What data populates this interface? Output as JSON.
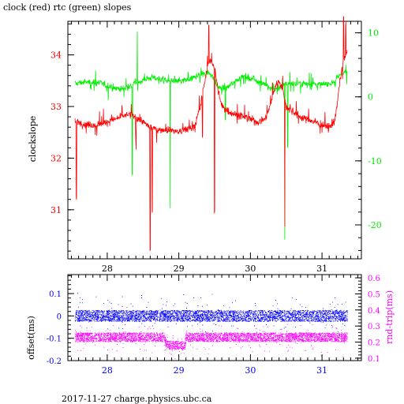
{
  "title": "clock (red) rtc (green) slopes",
  "footer": "2017-11-27 charge.physics.ubc.ca",
  "colors": {
    "red": "#ff0000",
    "green": "#00ee00",
    "blue": "#0000ff",
    "magenta": "#ff00ff",
    "axis": "#000000"
  },
  "chart_data": [
    {
      "type": "line",
      "title": "clock (red) rtc (green) slopes",
      "xlabel": "",
      "ylabel": "clockslope",
      "y2label": "",
      "xlim": [
        27.45,
        31.55
      ],
      "ylim": [
        30.05,
        34.65
      ],
      "y2lim": [
        -25.3,
        11.8
      ],
      "xticks": [
        "28",
        "29",
        "30",
        "31"
      ],
      "yticks": [
        "31",
        "32",
        "33",
        "34"
      ],
      "y2ticks": [
        "10",
        "0",
        "-10",
        "-20"
      ],
      "series": [
        {
          "name": "clock (red)",
          "axis": "left",
          "x": [
            27.55,
            27.6,
            27.7,
            27.8,
            27.9,
            28.0,
            28.1,
            28.2,
            28.3,
            28.4,
            28.5,
            28.6,
            28.7,
            28.8,
            28.9,
            29.0,
            29.1,
            29.2,
            29.25,
            29.3,
            29.35,
            29.4,
            29.45,
            29.5,
            29.55,
            29.6,
            29.7,
            29.8,
            29.9,
            30.0,
            30.1,
            30.2,
            30.25,
            30.3,
            30.35,
            30.4,
            30.45,
            30.5,
            30.6,
            30.7,
            30.8,
            30.9,
            31.0,
            31.1,
            31.15,
            31.2,
            31.25,
            31.3,
            31.35
          ],
          "values": [
            32.7,
            32.7,
            32.65,
            32.65,
            32.65,
            32.7,
            32.75,
            32.8,
            32.85,
            32.8,
            32.7,
            32.6,
            32.55,
            32.55,
            32.55,
            32.5,
            32.55,
            32.6,
            32.75,
            33.0,
            33.4,
            33.8,
            33.9,
            33.75,
            33.3,
            33.0,
            32.9,
            32.85,
            32.8,
            32.75,
            32.7,
            32.75,
            32.9,
            33.15,
            33.4,
            33.5,
            33.35,
            33.0,
            32.9,
            32.8,
            32.75,
            32.7,
            32.65,
            32.6,
            32.65,
            32.9,
            33.5,
            33.9,
            34.05
          ]
        },
        {
          "name": "rtc (green)",
          "axis": "right",
          "x": [
            27.55,
            27.6,
            27.7,
            27.8,
            27.9,
            28.0,
            28.1,
            28.2,
            28.3,
            28.4,
            28.5,
            28.6,
            28.7,
            28.8,
            28.9,
            29.0,
            29.1,
            29.2,
            29.25,
            29.3,
            29.35,
            29.4,
            29.45,
            29.5,
            29.55,
            29.6,
            29.7,
            29.8,
            29.9,
            30.0,
            30.1,
            30.2,
            30.25,
            30.3,
            30.35,
            30.4,
            30.45,
            30.5,
            30.6,
            30.7,
            30.8,
            30.9,
            31.0,
            31.1,
            31.15,
            31.2,
            31.25,
            31.3,
            31.35
          ],
          "values": [
            2.0,
            2.2,
            2.3,
            2.3,
            2.2,
            1.7,
            1.4,
            1.2,
            1.6,
            2.2,
            2.6,
            3.0,
            2.9,
            2.6,
            2.4,
            2.4,
            2.6,
            2.9,
            3.3,
            3.5,
            3.6,
            3.8,
            3.6,
            2.5,
            1.5,
            1.3,
            1.6,
            2.6,
            3.2,
            3.0,
            2.5,
            2.1,
            1.4,
            1.1,
            1.2,
            1.4,
            1.7,
            2.1,
            2.0,
            2.1,
            2.1,
            2.0,
            1.9,
            2.1,
            2.3,
            2.7,
            3.4,
            3.9,
            3.7
          ]
        }
      ]
    },
    {
      "type": "scatter",
      "xlabel": "",
      "ylabel": "offset(ms)",
      "y2label": "rnd-trip(ms)",
      "xlim": [
        27.45,
        31.55
      ],
      "ylim": [
        -0.2,
        0.185
      ],
      "y2lim": [
        0.085,
        0.62
      ],
      "xticks": [
        "28",
        "29",
        "30",
        "31"
      ],
      "yticks": [
        "0.1",
        "0",
        "-0.1",
        "-0.2"
      ],
      "y2ticks": [
        "0.6",
        "0.5",
        "0.4",
        "0.3",
        "0.2",
        "0.1"
      ],
      "series": [
        {
          "name": "offset",
          "axis": "left",
          "x": [
            27.55,
            31.35
          ],
          "values": [
            0.0,
            0.0
          ]
        },
        {
          "name": "rnd-trip",
          "axis": "right",
          "x": [
            27.55,
            28.8,
            28.82,
            29.08,
            29.1,
            31.35
          ],
          "values": [
            0.23,
            0.23,
            0.18,
            0.18,
            0.23,
            0.23
          ]
        }
      ]
    }
  ]
}
